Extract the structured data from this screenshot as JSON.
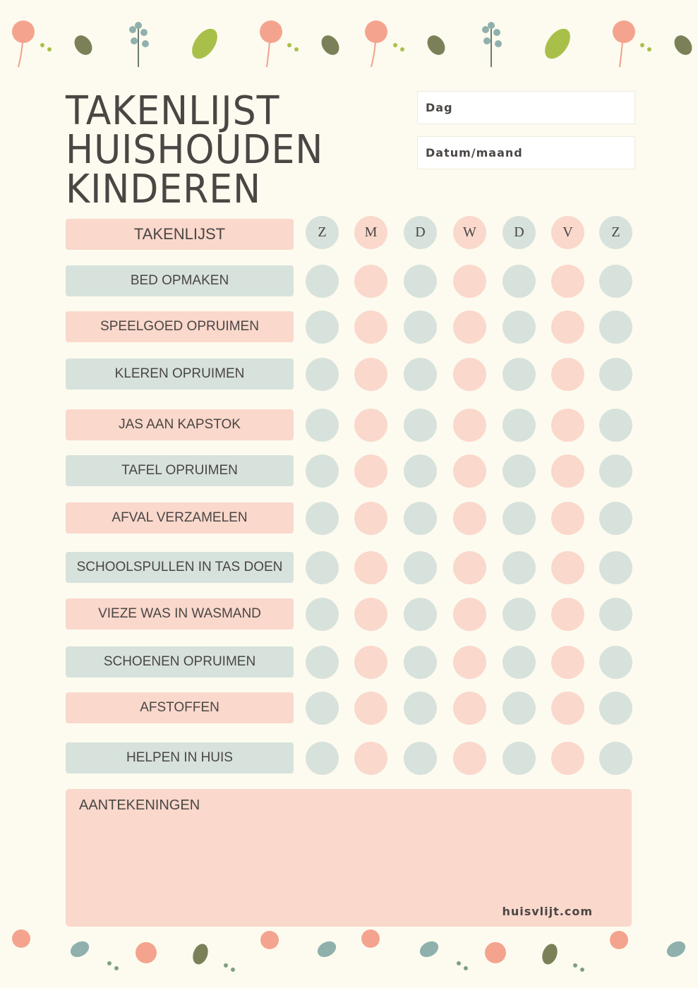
{
  "header": {
    "title": [
      "TAKENLIJST",
      "HUISHOUDEN",
      "KINDEREN"
    ]
  },
  "fields": [
    "Dag",
    "Datum/maand"
  ],
  "table": {
    "header": "TAKENLIJST",
    "days": [
      "Z",
      "M",
      "D",
      "W",
      "D",
      "V",
      "Z"
    ],
    "tasks": [
      "BED OPMAKEN",
      "SPEELGOED OPRUIMEN",
      "KLEREN OPRUIMEN",
      "JAS AAN KAPSTOK",
      "TAFEL OPRUIMEN",
      "AFVAL VERZAMELEN",
      "SCHOOLSPULLEN IN TAS DOEN",
      "VIEZE WAS IN WASMAND",
      "SCHOENEN OPRUIMEN",
      "AFSTOFFEN",
      "HELPEN IN HUIS"
    ]
  },
  "notes": {
    "label": "AANTEKENINGEN"
  },
  "footer": {
    "website": "huisvlijt.com"
  }
}
